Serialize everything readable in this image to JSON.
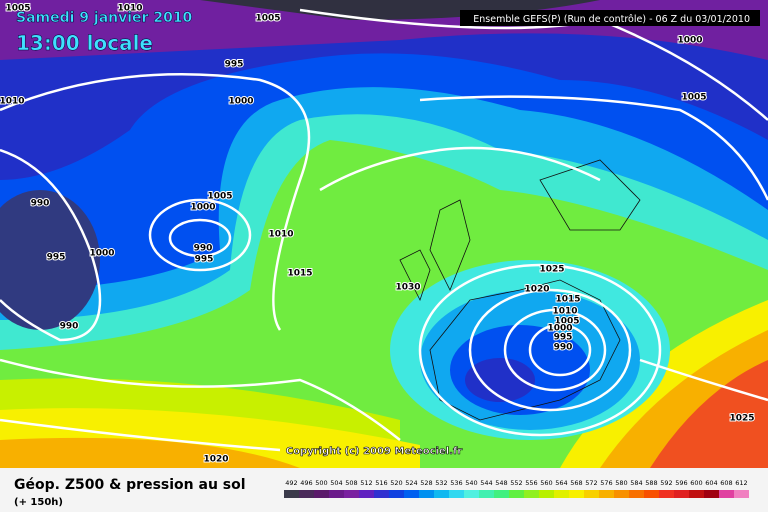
{
  "header": {
    "date": "Samedi 9 janvier 2010",
    "time": "13:00 locale",
    "run": "Ensemble GEFS(P) (Run de contrôle)  -  06 Z du 03/01/2010",
    "copyright": "Copyright (c) 2009 Meteociel.fr"
  },
  "footer": {
    "title": "Géop. Z500 & pression au sol",
    "lead": "(+ 150h)"
  },
  "scale": {
    "values": [
      492,
      496,
      500,
      504,
      508,
      512,
      516,
      520,
      524,
      528,
      532,
      536,
      540,
      544,
      548,
      552,
      556,
      560,
      564,
      568,
      572,
      576,
      580,
      584,
      588,
      592,
      596,
      600,
      604,
      608,
      612
    ],
    "colors": [
      "#3a3a4a",
      "#4a2a5a",
      "#5a1a6a",
      "#6a1a8a",
      "#7a20a0",
      "#6020c0",
      "#3030d0",
      "#1040e0",
      "#0060f0",
      "#0090f0",
      "#10b8f0",
      "#30d8f0",
      "#50f0e0",
      "#40f0b0",
      "#40f080",
      "#60f040",
      "#90f020",
      "#b8f000",
      "#e0f000",
      "#f8f000",
      "#f8d000",
      "#f8b000",
      "#f89000",
      "#f87000",
      "#f85000",
      "#f03020",
      "#e02020",
      "#c01010",
      "#a00010",
      "#e040a0",
      "#f080c0"
    ]
  },
  "isobars": [
    1005,
    1010,
    1005,
    1000,
    995,
    1000,
    1010,
    1005,
    990,
    1005,
    1000,
    1010,
    990,
    995,
    995,
    1000,
    1015,
    1030,
    1025,
    1020,
    1015,
    1010,
    1005,
    1000,
    995,
    990,
    990,
    1025,
    1020
  ]
}
